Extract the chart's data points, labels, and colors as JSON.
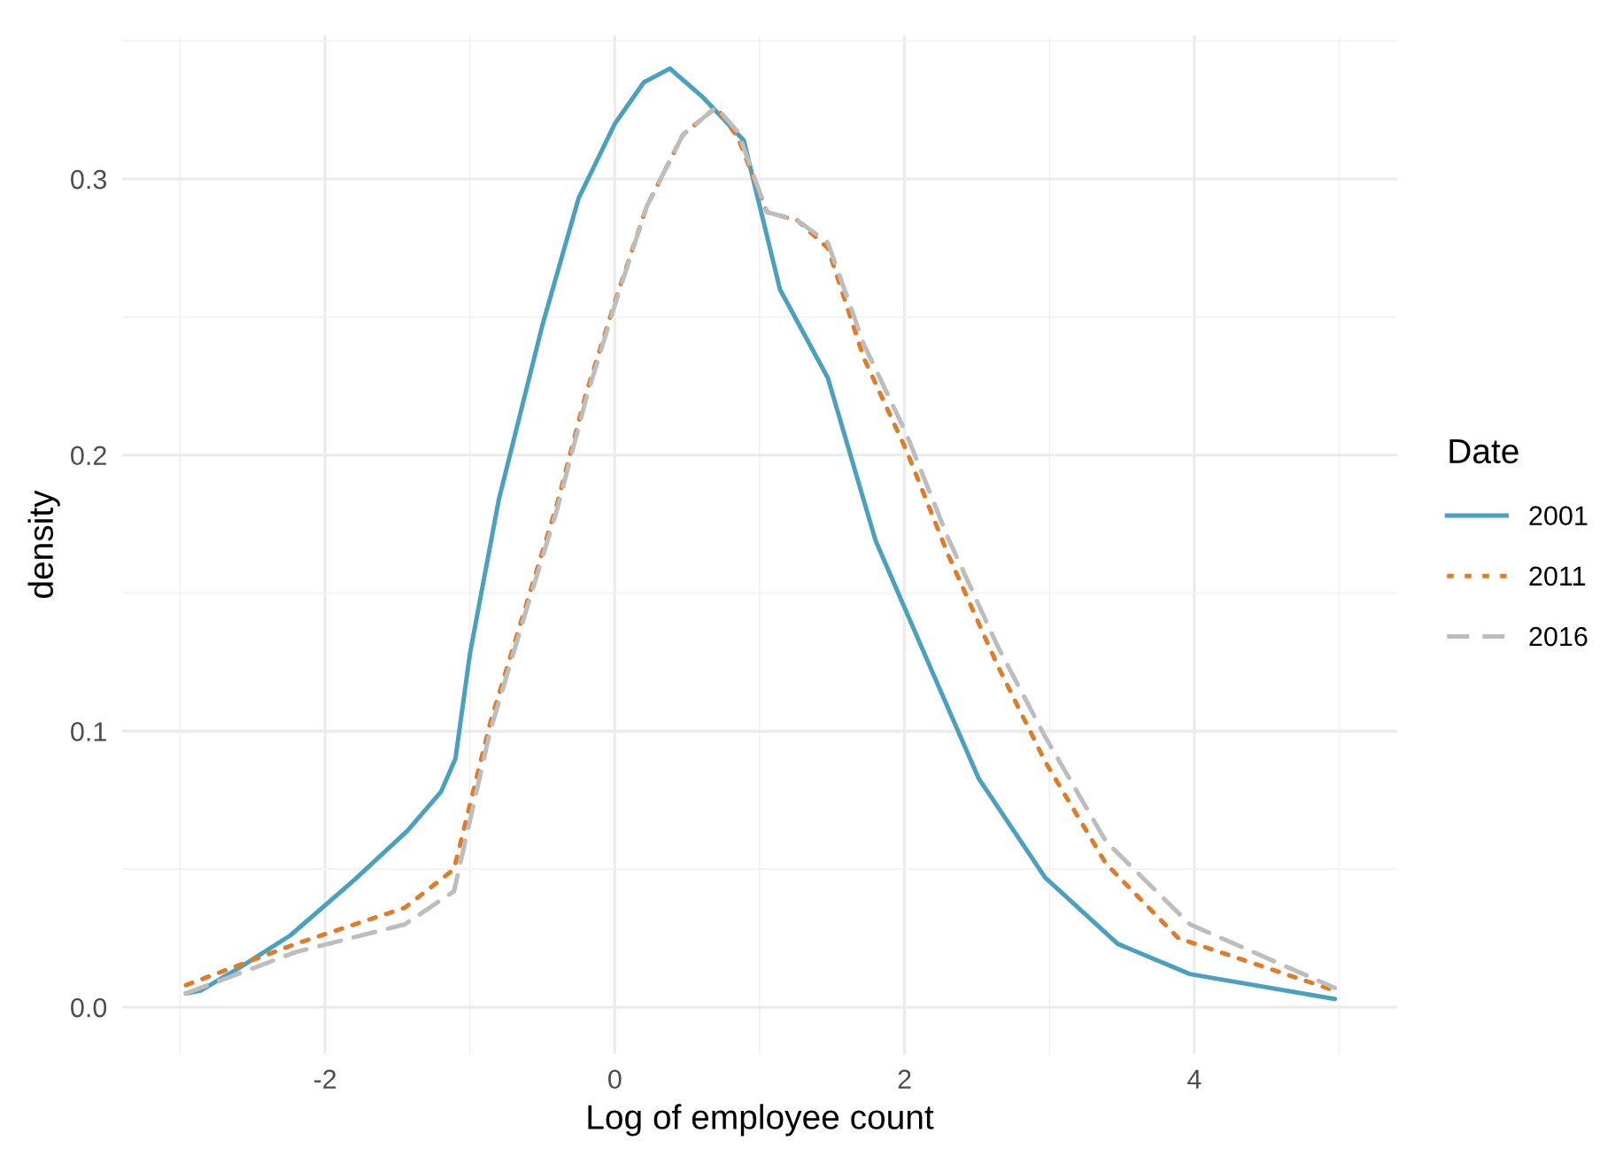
{
  "chart_data": {
    "type": "line",
    "xlabel": "Log of employee count",
    "ylabel": "density",
    "legend_title": "Date",
    "legend": "right",
    "grid": true,
    "xlim": [
      -3.4,
      5.4
    ],
    "xticks": [
      -2,
      0,
      2,
      4
    ],
    "ylim": [
      -0.017,
      0.352
    ],
    "yticks": [
      {
        "value": 0,
        "label": "0.0"
      },
      0.1,
      0.2,
      0.3
    ],
    "series": [
      {
        "name": "2001",
        "color": "#4aa0bf",
        "line_style": "solid",
        "x": [
          -2.96,
          -2.86,
          -2.6,
          -2.24,
          -1.8,
          -1.43,
          -1.2,
          -1.1,
          -1.0,
          -0.8,
          -0.5,
          -0.25,
          0.0,
          0.2,
          0.38,
          0.6,
          0.89,
          1.14,
          1.47,
          1.8,
          2.22,
          2.51,
          2.97,
          3.47,
          3.97,
          4.97
        ],
        "values": [
          0.005,
          0.006,
          0.014,
          0.026,
          0.046,
          0.064,
          0.078,
          0.09,
          0.128,
          0.184,
          0.247,
          0.293,
          0.32,
          0.335,
          0.34,
          0.33,
          0.314,
          0.26,
          0.228,
          0.169,
          0.118,
          0.083,
          0.047,
          0.023,
          0.012,
          0.003
        ]
      },
      {
        "name": "2011",
        "color": "#e07b28",
        "line_style": "dotted",
        "x": [
          -2.96,
          -2.2,
          -1.45,
          -1.11,
          -0.86,
          -0.61,
          -0.4,
          -0.2,
          0.01,
          0.22,
          0.47,
          0.7,
          0.85,
          1.05,
          1.26,
          1.47,
          1.72,
          2.01,
          2.3,
          2.64,
          2.97,
          3.39,
          3.89,
          4.97
        ],
        "values": [
          0.008,
          0.023,
          0.036,
          0.05,
          0.103,
          0.146,
          0.182,
          0.222,
          0.257,
          0.29,
          0.316,
          0.326,
          0.315,
          0.288,
          0.285,
          0.275,
          0.235,
          0.202,
          0.164,
          0.124,
          0.089,
          0.052,
          0.025,
          0.006
        ]
      },
      {
        "name": "2016",
        "color": "#bdbdbd",
        "line_style": "dashed",
        "x": [
          -2.96,
          -2.2,
          -1.45,
          -1.11,
          -0.86,
          -0.61,
          -0.4,
          -0.2,
          0.01,
          0.22,
          0.47,
          0.7,
          0.85,
          1.05,
          1.26,
          1.47,
          1.72,
          2.01,
          2.3,
          2.64,
          2.97,
          3.39,
          3.97,
          4.97
        ],
        "values": [
          0.005,
          0.02,
          0.03,
          0.042,
          0.1,
          0.144,
          0.18,
          0.22,
          0.256,
          0.29,
          0.316,
          0.326,
          0.317,
          0.288,
          0.285,
          0.277,
          0.24,
          0.208,
          0.17,
          0.131,
          0.098,
          0.06,
          0.03,
          0.007
        ]
      }
    ]
  }
}
